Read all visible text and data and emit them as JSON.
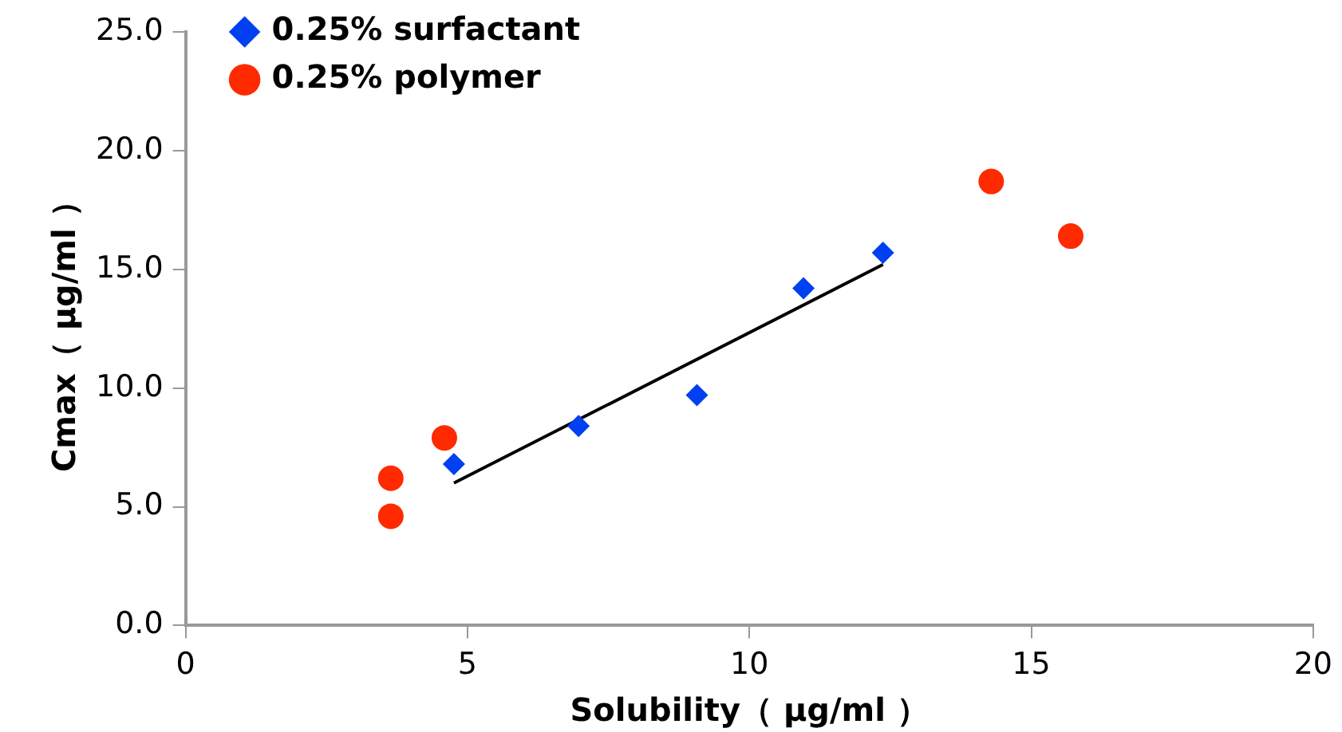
{
  "chart_data": {
    "type": "scatter",
    "xlabel": "Solubility（ μg/ml ）",
    "ylabel": "Cmax（ μg/ml ）",
    "xlim": [
      0,
      20
    ],
    "xticks": [
      0,
      5,
      10,
      15,
      20
    ],
    "ylim": [
      0,
      25
    ],
    "yticks": [
      {
        "value": 0,
        "label": "0.0"
      },
      {
        "value": 5,
        "label": "5.0"
      },
      {
        "value": 10,
        "label": "10.0"
      },
      {
        "value": 15,
        "label": "15.0"
      },
      {
        "value": 20,
        "label": "20.0"
      },
      {
        "value": 25,
        "label": "25.0"
      }
    ],
    "grid": false,
    "legend": "top left",
    "series": [
      {
        "name": "0.25% surfactant",
        "color": "#0040f0",
        "marker": "diamond",
        "x": [
          4.76,
          6.97,
          9.07,
          10.96,
          12.37
        ],
        "values": [
          6.8,
          8.4,
          9.7,
          14.2,
          15.7
        ]
      },
      {
        "name": "0.25% polymer",
        "color": "#ff2a00",
        "marker": "circle",
        "x": [
          3.64,
          3.64,
          4.59,
          14.29,
          15.7
        ],
        "values": [
          6.2,
          4.6,
          7.9,
          18.7,
          16.4
        ]
      },
      {
        "type": "line",
        "color": "#000000",
        "marker": "none",
        "x": [
          4.76,
          12.37
        ],
        "values": [
          6.0,
          15.2
        ]
      }
    ]
  }
}
